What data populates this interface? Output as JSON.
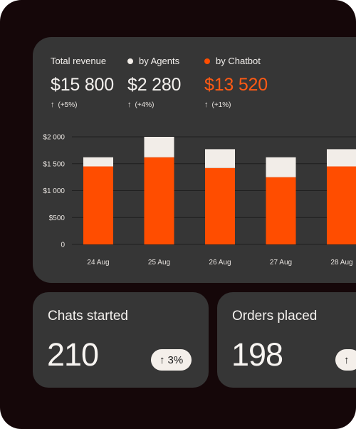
{
  "summary": {
    "total": {
      "label": "Total revenue",
      "value": "$15 800",
      "change": "(+5%)"
    },
    "agents": {
      "label": "by Agents",
      "value": "$2 280",
      "change": "(+4%)"
    },
    "chatbot": {
      "label": "by Chatbot",
      "value": "$13 520",
      "change": "(+1%)"
    }
  },
  "colors": {
    "chatbot": "#ff4d00",
    "chatbot_value": "#ff5a14",
    "agents": "#f2ede8",
    "frame_bg": "#150709",
    "card_bg": "#363636"
  },
  "icons": {
    "change": "arrow-up-icon"
  },
  "chart_data": {
    "type": "bar",
    "stacked": true,
    "categories": [
      "24 Aug",
      "25 Aug",
      "26 Aug",
      "27 Aug",
      "28 Aug"
    ],
    "series": [
      {
        "name": "by Chatbot",
        "color": "#ff4d00",
        "values": [
          1450,
          1620,
          1420,
          1250,
          1450
        ]
      },
      {
        "name": "by Agents",
        "color": "#f2ede8",
        "values": [
          170,
          380,
          350,
          370,
          320
        ]
      }
    ],
    "yticks": [
      "0",
      "$500",
      "$1 000",
      "$1 500",
      "$2 000"
    ],
    "ylim": [
      0,
      2000
    ],
    "grid": true
  },
  "stats": {
    "chats": {
      "title": "Chats started",
      "value": "210",
      "change": "3%"
    },
    "orders": {
      "title": "Orders placed",
      "value": "198",
      "change": ""
    }
  }
}
